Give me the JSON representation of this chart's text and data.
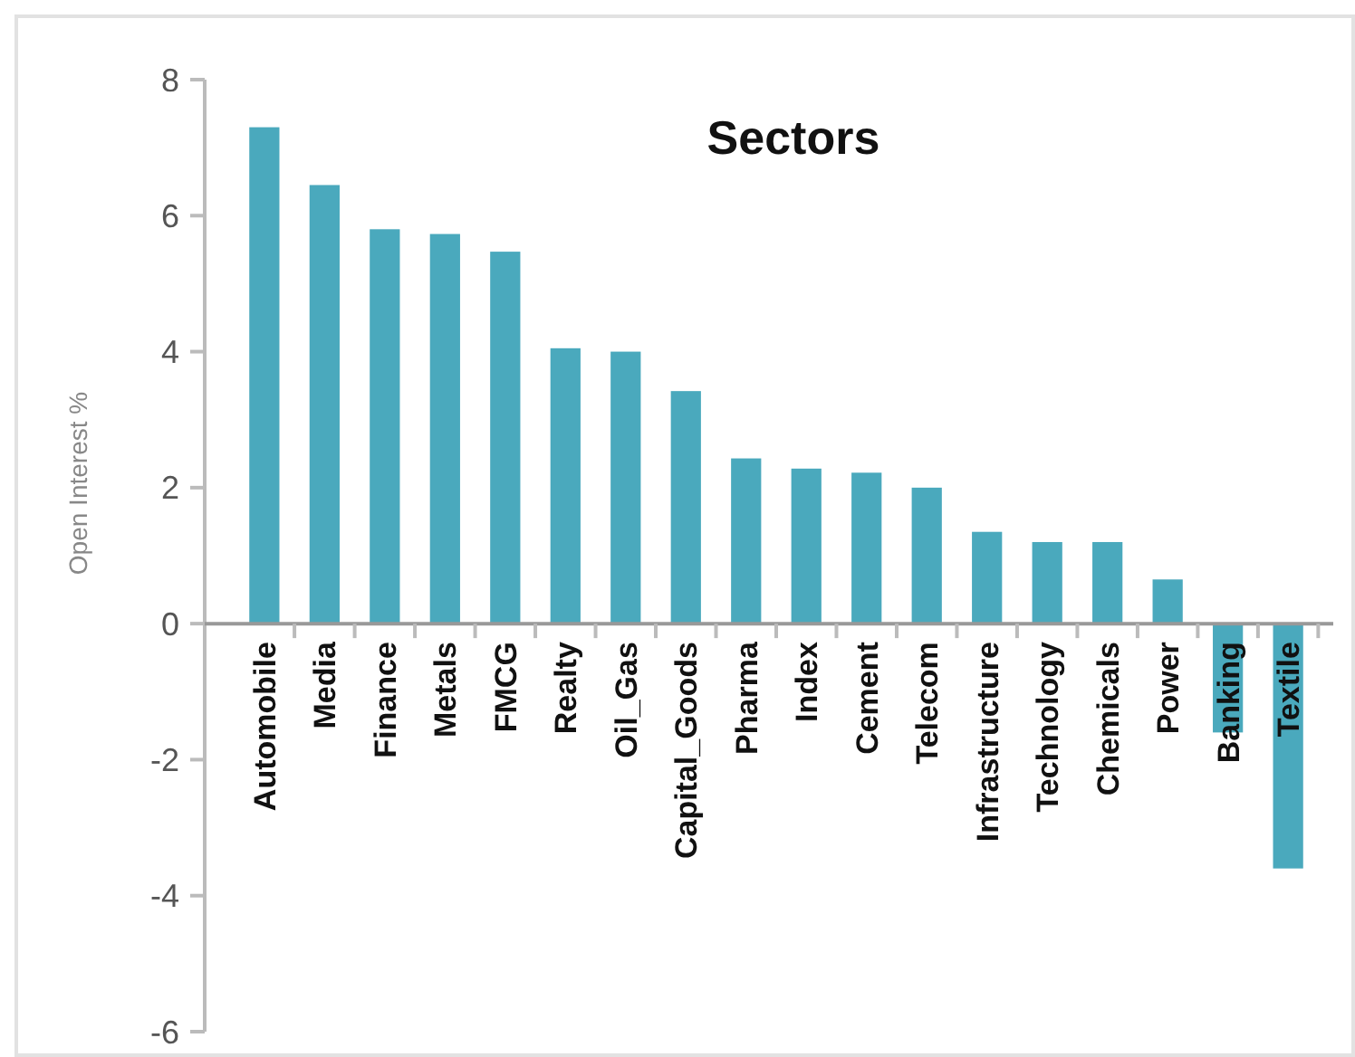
{
  "chart_data": {
    "type": "bar",
    "title": "Sectors",
    "ylabel": "Open Interest %",
    "categories": [
      "Automobile",
      "Media",
      "Finance",
      "Metals",
      "FMCG",
      "Realty",
      "Oil_Gas",
      "Capital_Goods",
      "Pharma",
      "Index",
      "Cement",
      "Telecom",
      "Infrastructure",
      "Technology",
      "Chemicals",
      "Power",
      "Banking",
      "Textile"
    ],
    "values": [
      7.3,
      6.45,
      5.8,
      5.73,
      5.47,
      4.05,
      4.0,
      3.42,
      2.43,
      2.28,
      2.22,
      2.0,
      1.35,
      1.2,
      1.2,
      0.65,
      -1.6,
      -3.6
    ],
    "color": "#4aa9bd",
    "ylim": [
      -6,
      8
    ],
    "yticks": [
      -6,
      -4,
      -2,
      0,
      2,
      4,
      6,
      8
    ],
    "grid": false
  }
}
